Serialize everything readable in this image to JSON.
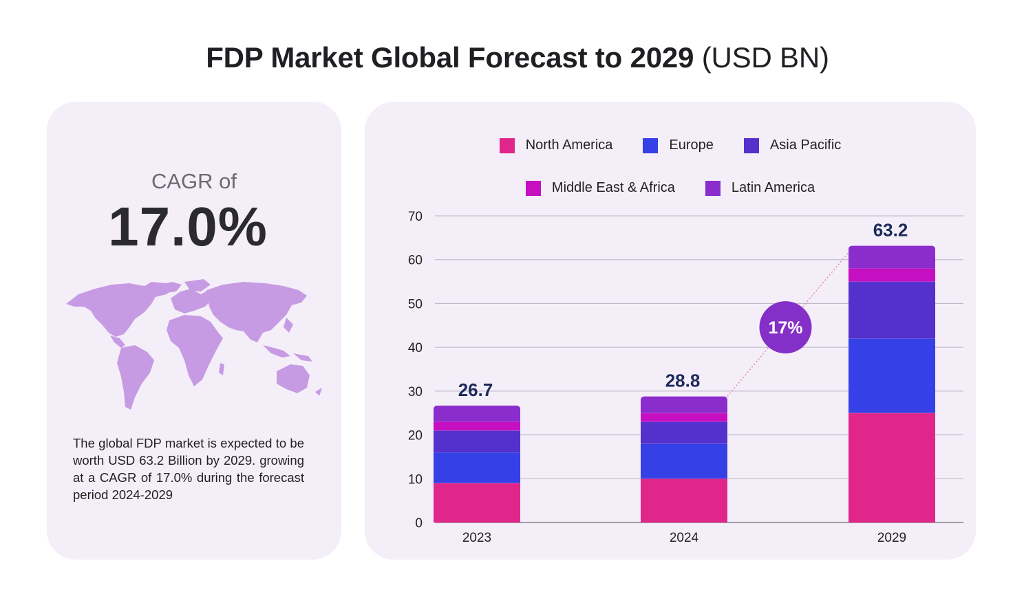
{
  "title": {
    "bold": "FDP Market Global Forecast to 2029",
    "light": "(USD BN)"
  },
  "left_panel": {
    "cagr_label": "CAGR of",
    "cagr_value": "17.0%",
    "map_icon": "world-map-icon",
    "description": "The global FDP market is expected to be worth USD 63.2 Billion by 2029. growing at a CAGR of 17.0% during the forecast period 2024-2029"
  },
  "colors": {
    "north_america": "#e0268a",
    "europe": "#3540e6",
    "asia_pacific": "#5430cc",
    "middle_east_africa": "#c50fc0",
    "latin_america": "#8b2ccc",
    "card_bg": "#f4eef9",
    "map": "#c79be3",
    "cagr_badge": "#8430c8",
    "total_label": "#1c2a5a"
  },
  "chart_data": {
    "type": "bar",
    "stacked": true,
    "categories": [
      "2023",
      "2024",
      "2029"
    ],
    "series": [
      {
        "name": "North America",
        "values": [
          9,
          10,
          25
        ]
      },
      {
        "name": "Europe",
        "values": [
          7,
          8,
          17
        ]
      },
      {
        "name": "Asia Pacific",
        "values": [
          5,
          5,
          13
        ]
      },
      {
        "name": "Middle East & Africa",
        "values": [
          2,
          2,
          3
        ]
      },
      {
        "name": "Latin America",
        "values": [
          3.7,
          3.8,
          5.2
        ]
      }
    ],
    "totals": [
      "26.7",
      "28.8",
      "63.2"
    ],
    "ylim": [
      0,
      70
    ],
    "yticks": [
      "0",
      "10",
      "20",
      "30",
      "40",
      "50",
      "60",
      "70"
    ],
    "grid": true,
    "legend_position": "top",
    "annotation": "17%"
  }
}
